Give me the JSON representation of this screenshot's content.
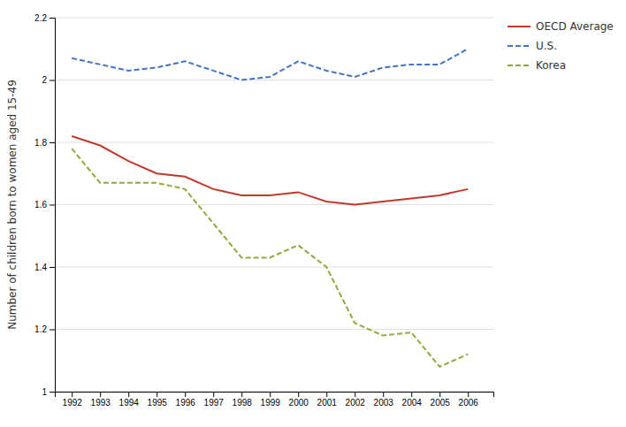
{
  "chart_data": {
    "type": "line",
    "y_label": "Number of children born to women aged 15-49",
    "x": [
      1992,
      1993,
      1994,
      1995,
      1996,
      1997,
      1998,
      1999,
      2000,
      2001,
      2002,
      2003,
      2004,
      2005,
      2006
    ],
    "series": [
      {
        "name": "OECD Average",
        "color": "#c0392b",
        "line_style": "solid",
        "values": [
          1.82,
          1.79,
          1.74,
          1.7,
          1.69,
          1.65,
          1.63,
          1.63,
          1.64,
          1.61,
          1.6,
          1.61,
          1.62,
          1.63,
          1.65
        ]
      },
      {
        "name": "U.S.",
        "color": "#4472c4",
        "line_style": "dashed",
        "values": [
          2.07,
          2.05,
          2.03,
          2.04,
          2.06,
          2.03,
          2.0,
          2.01,
          2.06,
          2.03,
          2.01,
          2.04,
          2.05,
          2.05,
          2.1
        ]
      },
      {
        "name": "Korea",
        "color": "#8faa3c",
        "line_style": "dashed",
        "values": [
          1.78,
          1.67,
          1.67,
          1.67,
          1.65,
          1.54,
          1.43,
          1.43,
          1.47,
          1.4,
          1.22,
          1.18,
          1.19,
          1.08,
          1.12
        ]
      }
    ],
    "xlim": [
      1991.4,
      2006.9
    ],
    "xticks": [
      1992,
      1993,
      1994,
      1995,
      1996,
      1997,
      1998,
      1999,
      2000,
      2001,
      2002,
      2003,
      2004,
      2005,
      2006
    ],
    "ylim": [
      1,
      2.2
    ],
    "yticks": [
      1,
      1.2,
      1.4,
      1.6,
      1.8,
      2,
      2.2
    ],
    "grid": true,
    "legend": "right"
  }
}
